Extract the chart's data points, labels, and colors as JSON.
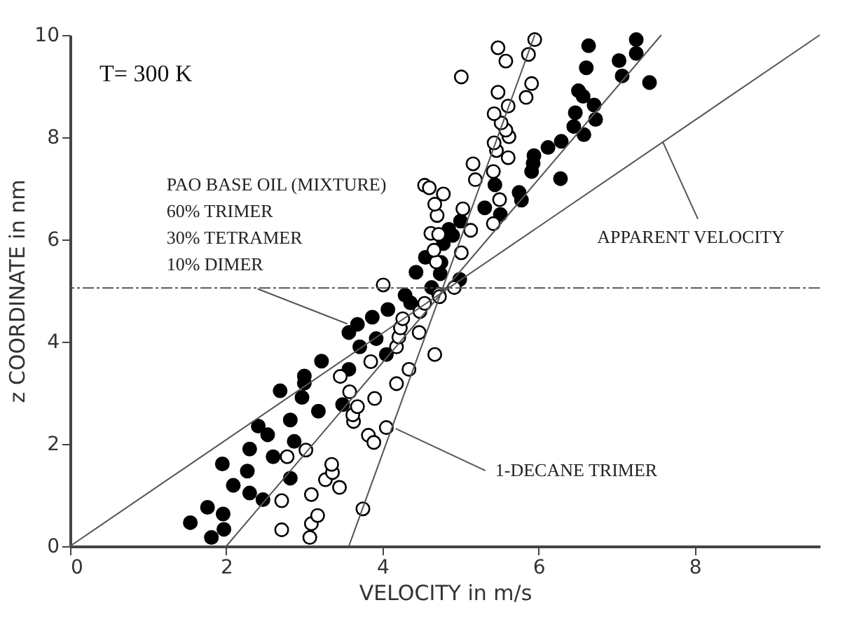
{
  "chart_data": {
    "type": "scatter",
    "xlabel": "VELOCITY in m/s",
    "ylabel": "z COORDINATE in nm",
    "xlim": [
      0,
      9.6
    ],
    "ylim": [
      0,
      10
    ],
    "xticks": [
      0,
      2,
      4,
      6,
      8
    ],
    "yticks": [
      0,
      2,
      4,
      6,
      8,
      10
    ],
    "grid": false,
    "marker": "circle",
    "series": [
      {
        "color": "#000000",
        "x": [
          1.54,
          1.81,
          1.97,
          1.76,
          1.96,
          2.09,
          2.27,
          2.3,
          2.47,
          1.95,
          2.3,
          2.41,
          2.53,
          2.6,
          2.82,
          2.87,
          2.82,
          2.69,
          2.97,
          3.0,
          3.0,
          3.18,
          3.22,
          3.49,
          3.57,
          3.71,
          3.92,
          4.05,
          3.57,
          3.68,
          3.87,
          4.07,
          4.29,
          4.36,
          4.63,
          4.74,
          4.43,
          4.55,
          4.75,
          4.85,
          4.99,
          4.78,
          4.9,
          5.0,
          5.31,
          5.51,
          5.44,
          5.75,
          5.78,
          5.91,
          5.93,
          5.94,
          6.28,
          6.12,
          6.29,
          6.45,
          6.58,
          6.47,
          6.73,
          6.71,
          6.51,
          6.57,
          6.61,
          6.64,
          7.03,
          7.07,
          7.25,
          7.25,
          7.42
        ],
        "values": [
          0.46,
          0.17,
          0.33,
          0.76,
          0.63,
          1.19,
          1.47,
          1.04,
          0.91,
          1.61,
          1.9,
          2.35,
          2.18,
          1.75,
          1.33,
          2.05,
          2.47,
          3.04,
          2.91,
          3.19,
          3.33,
          2.64,
          3.62,
          2.77,
          3.46,
          3.9,
          4.06,
          3.75,
          4.18,
          4.34,
          4.48,
          4.63,
          4.91,
          4.76,
          5.06,
          5.33,
          5.36,
          5.65,
          5.55,
          6.2,
          5.22,
          5.92,
          6.08,
          6.36,
          6.62,
          6.49,
          7.07,
          6.92,
          6.77,
          7.33,
          7.49,
          7.64,
          7.19,
          7.8,
          7.92,
          8.21,
          8.05,
          8.48,
          8.35,
          8.63,
          8.91,
          8.8,
          9.36,
          9.79,
          9.5,
          9.2,
          9.91,
          9.64,
          9.07
        ]
      },
      {
        "color": "#ffffff",
        "x": [
          2.71,
          3.07,
          3.09,
          3.17,
          3.75,
          2.71,
          3.09,
          3.27,
          3.36,
          3.35,
          3.45,
          2.78,
          3.02,
          3.82,
          3.89,
          4.05,
          3.63,
          3.62,
          3.68,
          3.58,
          3.9,
          3.46,
          3.85,
          4.18,
          4.34,
          4.67,
          4.47,
          4.18,
          4.21,
          4.23,
          4.26,
          4.48,
          4.54,
          4.72,
          4.01,
          4.73,
          4.92,
          4.69,
          5.01,
          4.66,
          4.62,
          4.72,
          4.7,
          5.13,
          5.42,
          4.67,
          5.03,
          4.54,
          4.6,
          4.78,
          5.5,
          5.16,
          5.19,
          5.42,
          5.46,
          5.43,
          5.61,
          5.62,
          5.58,
          5.52,
          5.43,
          5.61,
          5.48,
          5.84,
          5.91,
          5.58,
          5.87,
          5.01,
          5.48,
          5.95
        ],
        "values": [
          0.32,
          0.17,
          0.44,
          0.6,
          0.73,
          0.89,
          1.01,
          1.3,
          1.44,
          1.6,
          1.15,
          1.75,
          1.88,
          2.17,
          2.03,
          2.32,
          2.44,
          2.57,
          2.73,
          3.02,
          2.89,
          3.32,
          3.61,
          3.18,
          3.46,
          3.75,
          4.18,
          3.9,
          4.09,
          4.27,
          4.45,
          4.59,
          4.75,
          4.93,
          5.11,
          4.88,
          5.06,
          5.56,
          5.74,
          5.79,
          6.12,
          6.1,
          6.47,
          6.18,
          6.31,
          6.69,
          6.6,
          7.06,
          7.01,
          6.89,
          6.78,
          7.48,
          7.17,
          7.33,
          7.74,
          7.89,
          7.6,
          8.01,
          8.14,
          8.28,
          8.46,
          8.61,
          8.88,
          8.78,
          9.05,
          9.49,
          9.62,
          9.18,
          9.75,
          9.91
        ]
      },
      {
        "type": "line",
        "marker": "none",
        "color": "#555555",
        "x": [
          2.0,
          7.57
        ],
        "values": [
          0,
          10
        ]
      },
      {
        "type": "line",
        "marker": "none",
        "color": "#555555",
        "x": [
          3.57,
          5.95
        ],
        "values": [
          0,
          10
        ]
      },
      {
        "type": "line",
        "marker": "none",
        "color": "#555555",
        "x": [
          0,
          9.6
        ],
        "values": [
          0,
          10
        ]
      }
    ],
    "ref_lines": [
      {
        "axis": "y",
        "value": 5.05,
        "color": "#555555",
        "line_style": "dashed"
      }
    ],
    "annotations": [
      {
        "text": "PAO BASE OIL (MIXTURE)\n60% TRIMER\n30% TETRAMER\n10% DIMER",
        "x": 3.55,
        "y": 4.35
      },
      {
        "text": "APPARENT VELOCITY",
        "x": 7.59,
        "y": 7.91
      },
      {
        "text": "1-DECANE TRIMER",
        "x": 4.17,
        "y": 2.3
      },
      "T= 300 K"
    ]
  }
}
